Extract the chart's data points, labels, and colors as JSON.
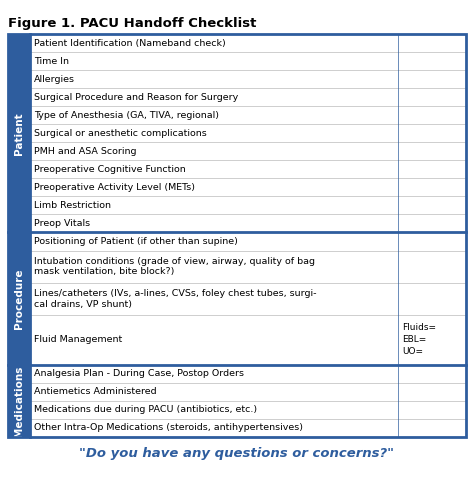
{
  "title": "Figure 1. PACU Handoff Checklist",
  "footer": "\"Do you have any questions or concerns?\"",
  "sections": [
    {
      "label": "Patient",
      "rows": [
        {
          "text": "Patient Identification (Nameband check)",
          "note": ""
        },
        {
          "text": "Time In",
          "note": ""
        },
        {
          "text": "Allergies",
          "note": ""
        },
        {
          "text": "Surgical Procedure and Reason for Surgery",
          "note": ""
        },
        {
          "text": "Type of Anesthesia (GA, TIVA, regional)",
          "note": ""
        },
        {
          "text": "Surgical or anesthetic complications",
          "note": ""
        },
        {
          "text": "PMH and ASA Scoring",
          "note": ""
        },
        {
          "text": "Preoperative Cognitive Function",
          "note": ""
        },
        {
          "text": "Preoperative Activity Level (METs)",
          "note": ""
        },
        {
          "text": "Limb Restriction",
          "note": ""
        },
        {
          "text": "Preop Vitals",
          "note": ""
        }
      ]
    },
    {
      "label": "Procedure",
      "rows": [
        {
          "text": "Positioning of Patient (if other than supine)",
          "note": ""
        },
        {
          "text": "Intubation conditions (grade of view, airway, quality of bag\nmask ventilation, bite block?)",
          "note": ""
        },
        {
          "text": "Lines/catheters (IVs, a-lines, CVSs, foley chest tubes, surgi-\ncal drains, VP shunt)",
          "note": ""
        },
        {
          "text": "Fluid Management",
          "note": "Fluids=\nEBL=\nUO="
        }
      ]
    },
    {
      "label": "Medications",
      "rows": [
        {
          "text": "Analgesia Plan - During Case, Postop Orders",
          "note": ""
        },
        {
          "text": "Antiemetics Administered",
          "note": ""
        },
        {
          "text": "Medications due during PACU (antibiotics, etc.)",
          "note": ""
        },
        {
          "text": "Other Intra-Op Medications (steroids, antihypertensives)",
          "note": ""
        }
      ]
    }
  ],
  "bg_color": "#FFFFFF",
  "sidebar_bg": "#2E5D9E",
  "border_color": "#2E5D9E",
  "text_color": "#000000",
  "title_color": "#000000",
  "footer_color": "#2E5D9E",
  "grid_color": "#BBBBBB",
  "thick_border_lw": 2.0,
  "thin_border_lw": 0.5,
  "text_fontsize": 6.8,
  "note_fontsize": 6.5,
  "title_fontsize": 9.5,
  "footer_fontsize": 9.5,
  "label_fontsize": 7.5
}
